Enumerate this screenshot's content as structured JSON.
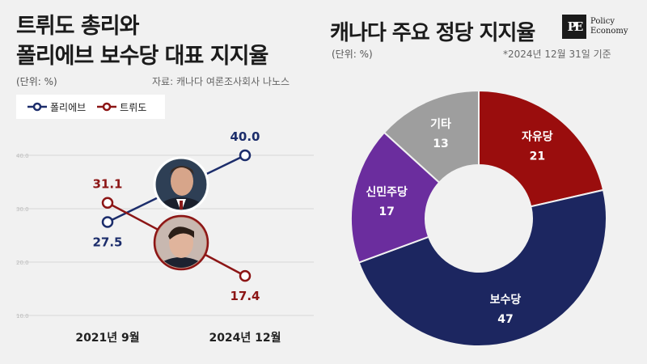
{
  "left_chart": {
    "title_line1": "트뤼도 총리와",
    "title_line2": "폴리에브 보수당 대표 지지율",
    "unit": "(단위: %)",
    "source": "자료: 캐나다 여론조사회사 나노스"
  },
  "right_chart": {
    "title": "캐나다 주요 정당 지지율",
    "unit": "(단위: %)",
    "date_note": "*2024년 12월 31일 기준"
  },
  "logo": {
    "mark": "PE",
    "line1": "Policy",
    "line2": "Economy"
  },
  "colors": {
    "poilievre": "#1c2d6b",
    "trudeau": "#8c1515",
    "liberal": "#9a0d0d",
    "conservative": "#1c2660",
    "ndp": "#6b2d9e",
    "other": "#9e9e9e"
  },
  "chart_data": [
    {
      "type": "line",
      "categories": [
        "2021년 9월",
        "2024년 12월"
      ],
      "series": [
        {
          "name": "폴리에브",
          "values": [
            27.5,
            40.0
          ],
          "labels": [
            "27.5",
            "40.0"
          ],
          "color": "#1c2d6b"
        },
        {
          "name": "트뤼도",
          "values": [
            31.1,
            17.4
          ],
          "labels": [
            "31.1",
            "17.4"
          ],
          "color": "#8c1515"
        }
      ],
      "yticks": [
        "40.0",
        "30.0",
        "20.0",
        "10.0"
      ],
      "ytick_values": [
        40,
        30,
        20,
        10
      ],
      "ylim": [
        10,
        40
      ],
      "grid": true,
      "legend": "top-left",
      "annotations": [
        "poilievre-portrait",
        "trudeau-portrait"
      ]
    },
    {
      "type": "pie",
      "subtype": "donut",
      "slices": [
        {
          "label": "자유당",
          "value": 21,
          "display": "21",
          "color": "#9a0d0d"
        },
        {
          "label": "보수당",
          "value": 47,
          "display": "47",
          "color": "#1c2660"
        },
        {
          "label": "신민주당",
          "value": 17,
          "display": "17",
          "color": "#6b2d9e"
        },
        {
          "label": "기타",
          "value": 13,
          "display": "13",
          "color": "#9e9e9e"
        }
      ]
    }
  ]
}
